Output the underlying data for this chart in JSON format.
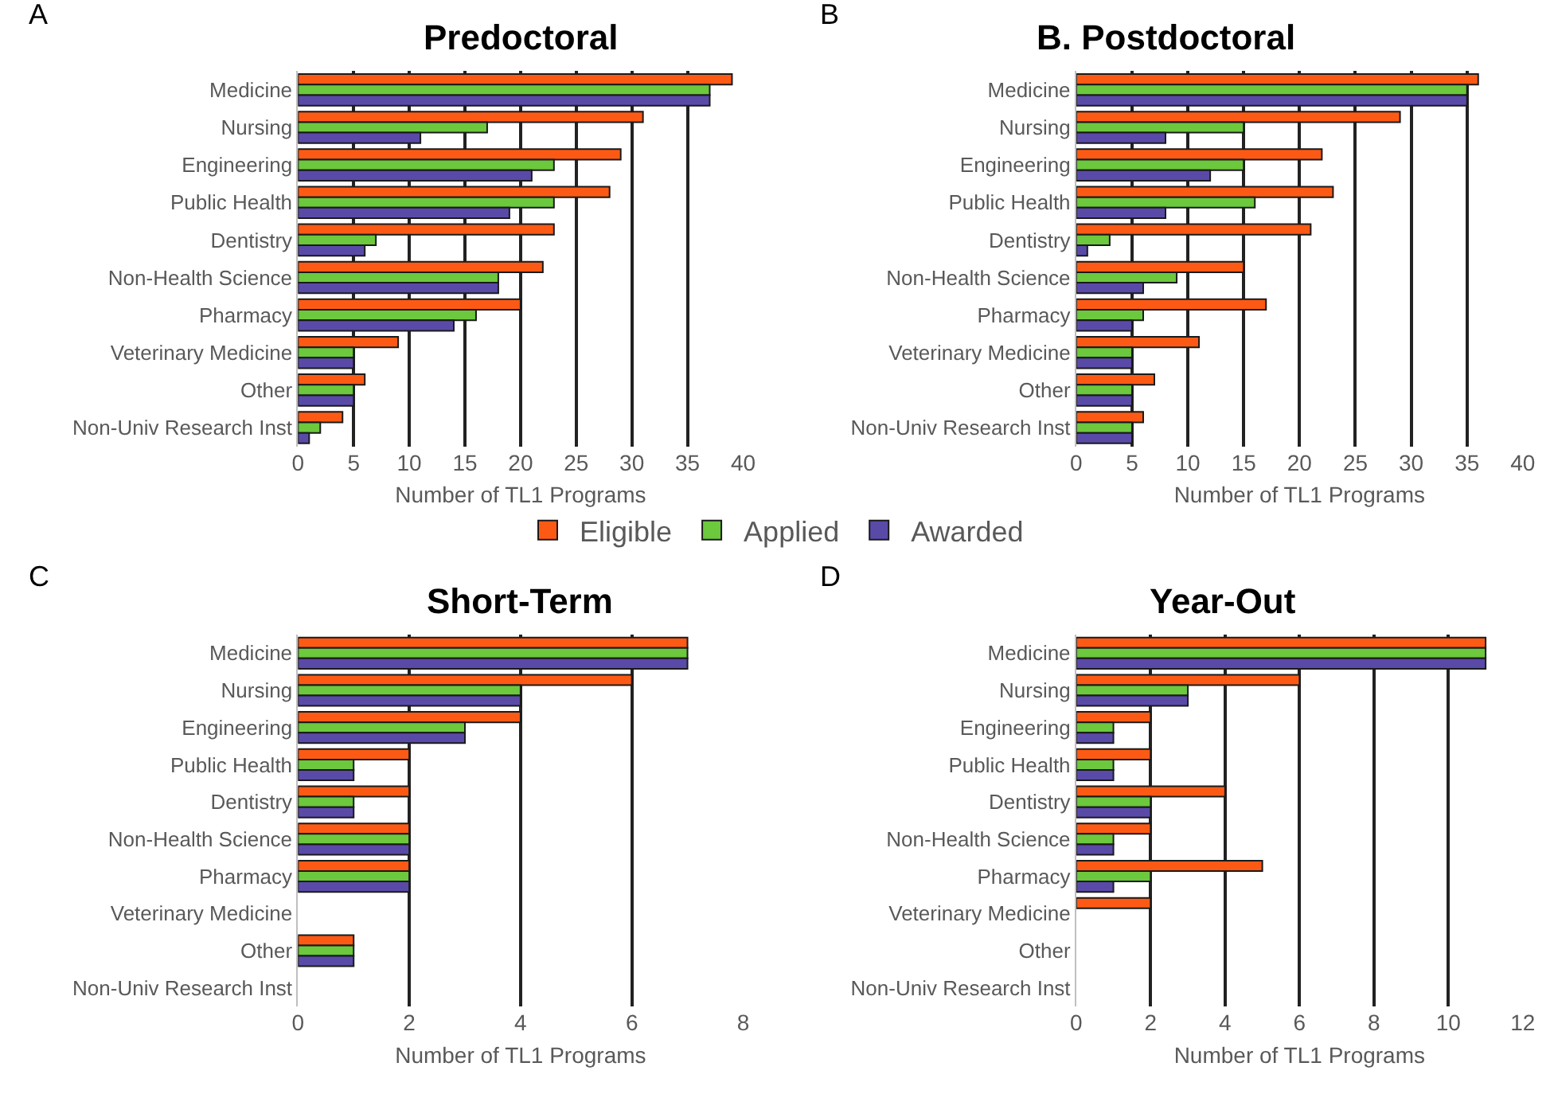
{
  "chart_data": [
    {
      "type": "bar",
      "orientation": "horizontal",
      "title": "Predoctoral",
      "xlabel": "Number of TL1 Programs",
      "annotations": [
        "A"
      ],
      "grid": "x",
      "legend": "bottom",
      "categories": [
        "Medicine",
        "Nursing",
        "Engineering",
        "Public Health",
        "Dentistry",
        "Non-Health Science",
        "Pharmacy",
        "Veterinary Medicine",
        "Other",
        "Non-Univ Research Inst"
      ],
      "series": [
        {
          "name": "Eligible",
          "color": "#fc5a14",
          "values": [
            39,
            31,
            29,
            28,
            23,
            22,
            20,
            9,
            6,
            4
          ]
        },
        {
          "name": "Applied",
          "color": "#6cc83c",
          "values": [
            37,
            17,
            23,
            23,
            7,
            18,
            16,
            5,
            5,
            2
          ]
        },
        {
          "name": "Awarded",
          "color": "#5a4aa8",
          "values": [
            37,
            11,
            21,
            19,
            6,
            18,
            14,
            5,
            5,
            1
          ]
        }
      ],
      "xlim": [
        0,
        40
      ],
      "xticks": [
        0,
        5,
        10,
        15,
        20,
        25,
        30,
        35,
        40
      ]
    },
    {
      "type": "bar",
      "orientation": "horizontal",
      "title": "B. Postdoctoral",
      "xlabel": "Number of TL1 Programs",
      "annotations": [
        "B"
      ],
      "grid": "x",
      "categories": [
        "Medicine",
        "Nursing",
        "Engineering",
        "Public Health",
        "Dentistry",
        "Non-Health Science",
        "Pharmacy",
        "Veterinary Medicine",
        "Other",
        "Non-Univ Research Inst"
      ],
      "series": [
        {
          "color": "#fc5a14",
          "values": [
            36,
            29,
            22,
            23,
            21,
            15,
            17,
            11,
            7,
            6
          ]
        },
        {
          "color": "#6cc83c",
          "values": [
            35,
            15,
            15,
            16,
            3,
            9,
            6,
            5,
            5,
            5
          ]
        },
        {
          "color": "#5a4aa8",
          "values": [
            35,
            8,
            12,
            8,
            1,
            6,
            5,
            5,
            5,
            5
          ]
        }
      ],
      "xlim": [
        0,
        40
      ],
      "xticks": [
        0,
        5,
        10,
        15,
        20,
        25,
        30,
        35,
        40
      ]
    },
    {
      "type": "bar",
      "orientation": "horizontal",
      "title": "Short-Term",
      "xlabel": "Number of TL1 Programs",
      "annotations": [
        "C"
      ],
      "grid": "x",
      "categories": [
        "Medicine",
        "Nursing",
        "Engineering",
        "Public Health",
        "Dentistry",
        "Non-Health Science",
        "Pharmacy",
        "Veterinary Medicine",
        "Other",
        "Non-Univ Research Inst"
      ],
      "series": [
        {
          "color": "#fc5a14",
          "values": [
            7,
            6,
            4,
            2,
            2,
            2,
            2,
            null,
            1,
            null
          ]
        },
        {
          "color": "#6cc83c",
          "values": [
            7,
            4,
            3,
            1,
            1,
            2,
            2,
            null,
            1,
            null
          ]
        },
        {
          "color": "#5a4aa8",
          "values": [
            7,
            4,
            3,
            1,
            1,
            2,
            2,
            null,
            1,
            null
          ]
        }
      ],
      "xlim": [
        0,
        8
      ],
      "xticks": [
        0,
        2,
        4,
        6,
        8
      ]
    },
    {
      "type": "bar",
      "orientation": "horizontal",
      "title": "Year-Out",
      "xlabel": "Number of TL1 Programs",
      "annotations": [
        "D"
      ],
      "grid": "x",
      "categories": [
        "Medicine",
        "Nursing",
        "Engineering",
        "Public Health",
        "Dentistry",
        "Non-Health Science",
        "Pharmacy",
        "Veterinary Medicine",
        "Other",
        "Non-Univ Research Inst"
      ],
      "series": [
        {
          "color": "#fc5a14",
          "values": [
            11,
            6,
            2,
            2,
            4,
            2,
            5,
            2,
            null,
            null
          ]
        },
        {
          "color": "#6cc83c",
          "values": [
            11,
            3,
            1,
            1,
            2,
            1,
            2,
            null,
            null,
            null
          ]
        },
        {
          "color": "#5a4aa8",
          "values": [
            11,
            3,
            1,
            1,
            2,
            1,
            1,
            null,
            null,
            null
          ]
        }
      ],
      "xlim": [
        0,
        12
      ],
      "xticks": [
        0,
        2,
        4,
        6,
        8,
        10,
        12
      ]
    }
  ]
}
